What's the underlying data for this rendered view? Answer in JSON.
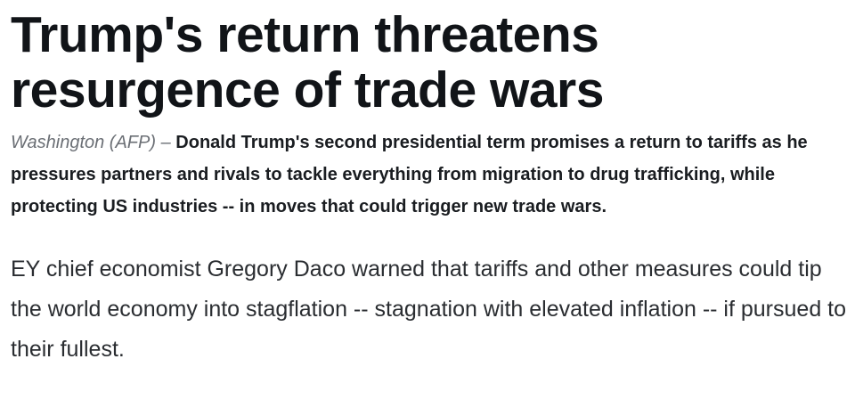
{
  "article": {
    "headline": "Trump's return threatens resurgence of trade wars",
    "dateline": "Washington (AFP) –",
    "lead": "Donald Trump's second presidential term promises a return to tariffs as he pressures partners and rivals to tackle everything from migration to drug trafficking, while protecting US industries -- in moves that could trigger new trade wars.",
    "paragraphs": [
      "EY chief economist Gregory Daco warned that tariffs and other measures could tip the world economy into stagflation -- stagnation with elevated inflation -- if pursued to their fullest."
    ]
  }
}
